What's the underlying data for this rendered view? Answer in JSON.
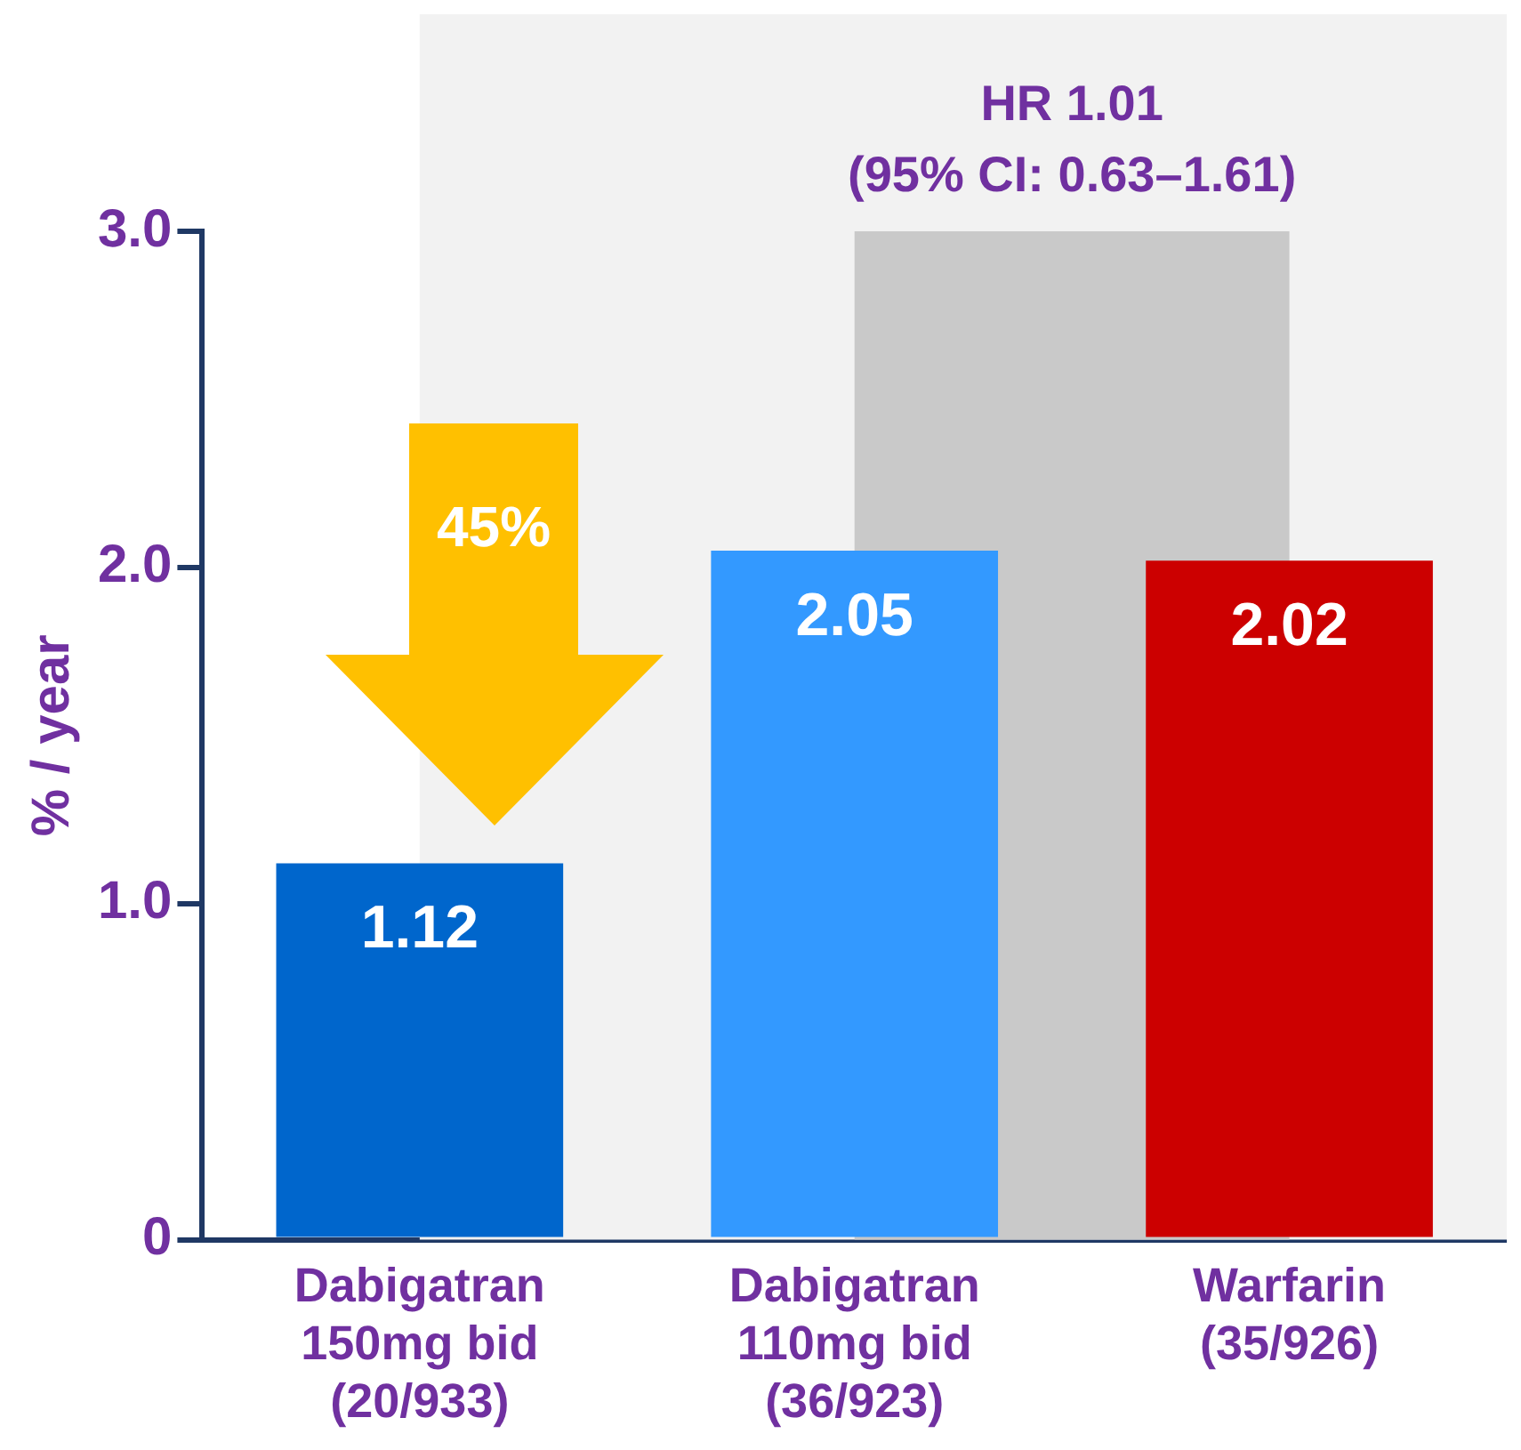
{
  "chart_data": {
    "type": "bar",
    "ylabel": "% / year",
    "categories": [
      "Dabigatran\n150mg bid\n(20/933)",
      "Dabigatran\n110mg bid\n(36/923)",
      "Warfarin\n(35/926)"
    ],
    "values": [
      1.12,
      2.05,
      2.02
    ],
    "colors": [
      "#0066cc",
      "#3399ff",
      "#cc0000"
    ],
    "ylim": [
      0,
      3
    ],
    "yticks": [
      {
        "value": 0,
        "label": "0"
      },
      {
        "value": 1,
        "label": "1.0"
      },
      {
        "value": 2,
        "label": "2.0"
      },
      {
        "value": 3,
        "label": "3.0"
      }
    ],
    "grid": false,
    "legend": false,
    "data_labels": true,
    "bands": [
      {
        "axis": "x",
        "from": "Dabigatran\n150mg bid\n(20/933)",
        "to": "Warfarin\n(35/926)",
        "color": "#f2f2f2"
      },
      {
        "axis": "x",
        "from": "Dabigatran\n110mg bid\n(36/923)",
        "to": "Warfarin\n(35/926)",
        "color": "#c9c9c9",
        "label": "HR 1.01\n(95% CI: 0.63–1.61)"
      }
    ],
    "annotations": [
      "45%"
    ]
  }
}
